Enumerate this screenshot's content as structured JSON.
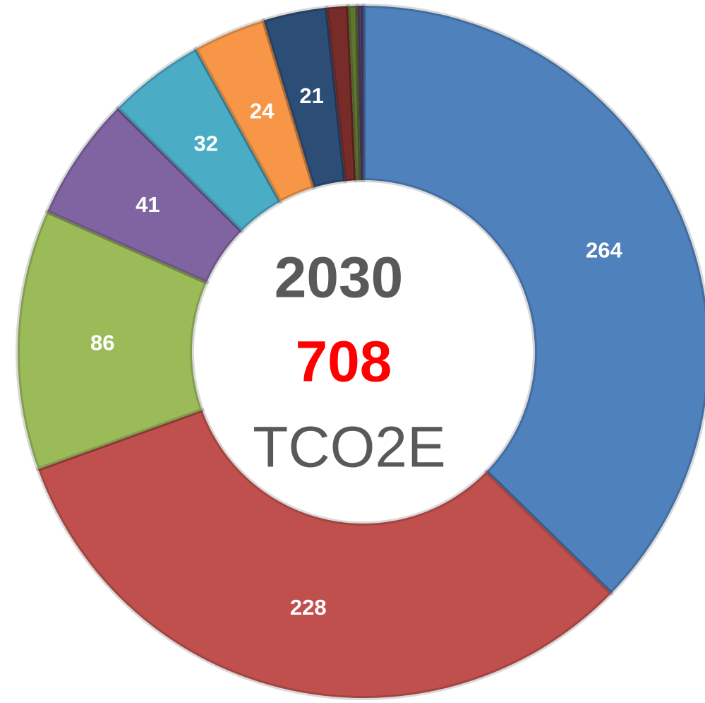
{
  "chart_data": {
    "type": "pie",
    "donut": true,
    "values": [
      264,
      228,
      86,
      41,
      32,
      24,
      21,
      7,
      3,
      2
    ],
    "colors": [
      "#4f81bd",
      "#c0504d",
      "#9bbb59",
      "#8064a2",
      "#4bacc6",
      "#f79646",
      "#2c4d75",
      "#772c2a",
      "#5f7530",
      "#4d3b62"
    ],
    "center_title": "2030",
    "center_value": 708,
    "center_unit": "TCO2E"
  }
}
